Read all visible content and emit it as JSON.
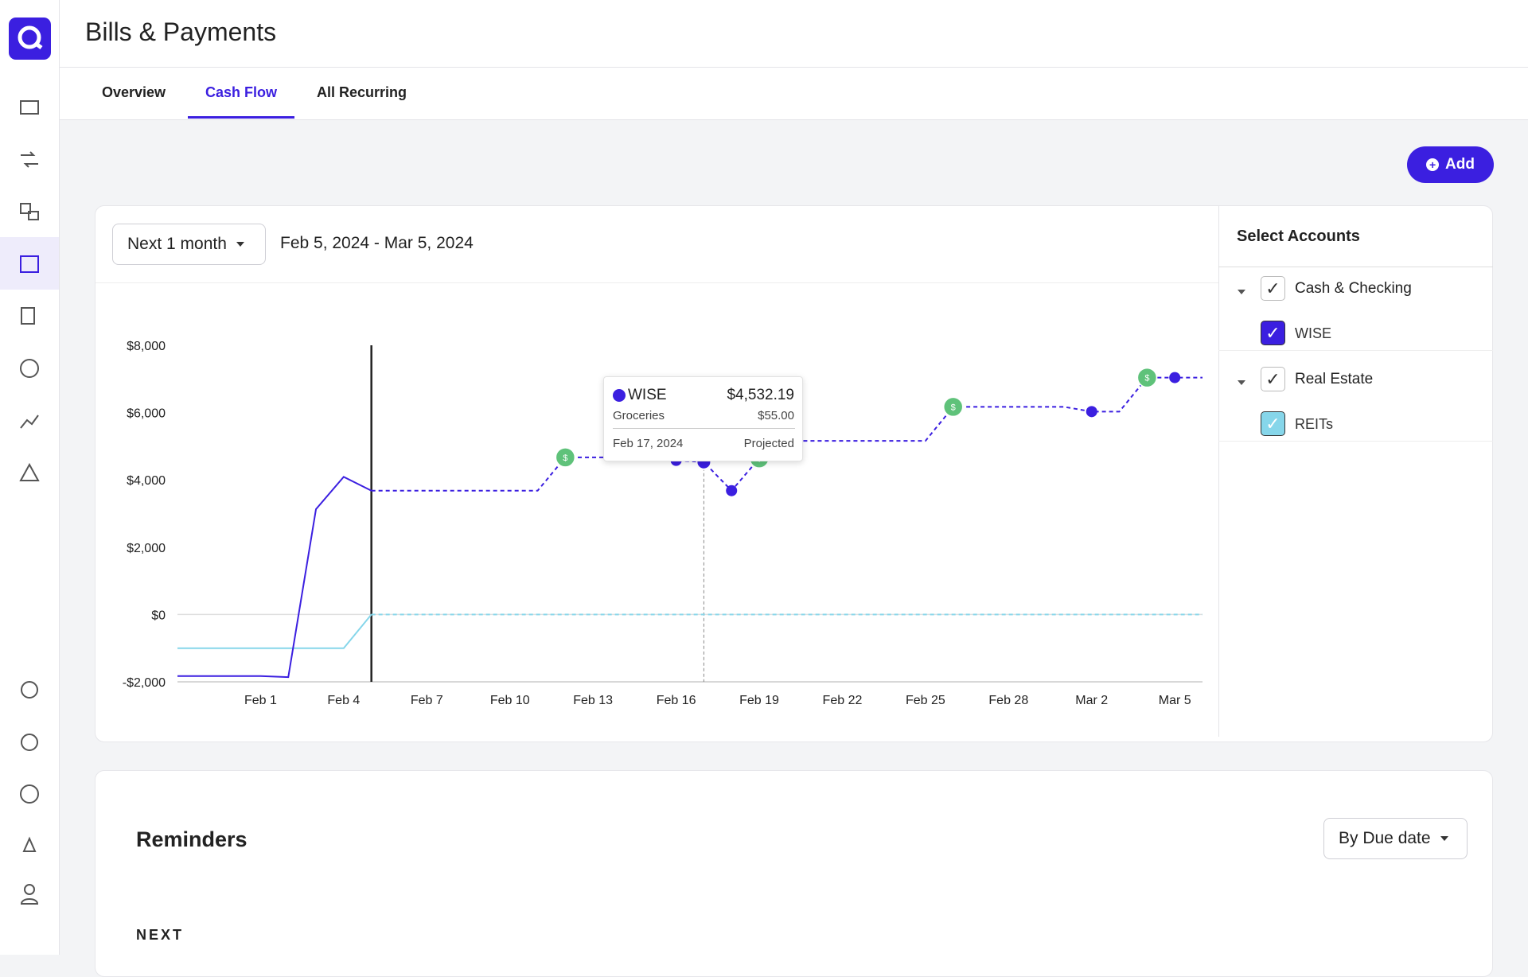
{
  "header": {
    "title": "Bills & Payments"
  },
  "tabs": [
    "Overview",
    "Cash Flow",
    "All Recurring"
  ],
  "active_tab": 1,
  "add_button": "Add",
  "range_select": "Next 1 month",
  "date_range": "Feb 5, 2024 - Mar 5, 2024",
  "accounts_panel": {
    "title": "Select Accounts",
    "groups": [
      {
        "name": "Cash & Checking",
        "accounts": [
          "WISE"
        ]
      },
      {
        "name": "Real Estate",
        "accounts": [
          "REITs"
        ]
      }
    ]
  },
  "tooltip": {
    "account": "WISE",
    "amount": "$4,532.19",
    "category": "Groceries",
    "category_amount": "$55.00",
    "date": "Feb 17, 2024",
    "status": "Projected",
    "hover_index": 19
  },
  "chart_data": {
    "type": "line",
    "categories": [
      null,
      null,
      null,
      "Feb 1",
      null,
      null,
      "Feb 4",
      null,
      null,
      "Feb 7",
      null,
      null,
      "Feb 10",
      null,
      null,
      "Feb 13",
      null,
      null,
      "Feb 16",
      null,
      null,
      "Feb 19",
      null,
      null,
      "Feb 22",
      null,
      null,
      "Feb 25",
      null,
      null,
      "Feb 28",
      null,
      null,
      "Mar 2",
      null,
      null,
      "Mar 5",
      null
    ],
    "series": [
      {
        "name": "WISE",
        "color": "#3b1fe0",
        "values": [
          -1830,
          -1830,
          -1830,
          -1830,
          -1860,
          3130,
          4090,
          3680,
          3680,
          3680,
          3680,
          3680,
          3680,
          3680,
          4670,
          4670,
          4670,
          4670,
          4580,
          4532.19,
          3680,
          4640,
          5160,
          5160,
          5160,
          5160,
          5160,
          5160,
          6170,
          6170,
          6170,
          6170,
          6170,
          6030,
          6030,
          7040,
          7040,
          7040
        ],
        "markers": [
          null,
          null,
          null,
          null,
          null,
          null,
          null,
          null,
          null,
          null,
          null,
          null,
          null,
          null,
          "bill",
          null,
          null,
          null,
          "dot",
          "dot",
          "dot",
          "bill",
          null,
          null,
          null,
          null,
          null,
          null,
          "bill",
          null,
          null,
          null,
          null,
          "dot",
          null,
          "bill",
          "dot",
          null
        ]
      },
      {
        "name": "REITs",
        "color": "#86d6ea",
        "values": [
          -1000,
          -1000,
          -1000,
          -1000,
          -1000,
          -1000,
          -1000,
          0,
          0,
          0,
          0,
          0,
          0,
          0,
          0,
          0,
          0,
          0,
          0,
          0,
          0,
          0,
          0,
          0,
          0,
          0,
          0,
          0,
          0,
          0,
          0,
          0,
          0,
          0,
          0,
          0,
          0,
          0
        ]
      }
    ],
    "bill_color": "#5fc27a",
    "bill_marker_label": "$",
    "today_index": 7,
    "ylim": [
      -2000,
      8000
    ],
    "yticks": [
      {
        "value": -2000,
        "label": "-$2,000"
      },
      {
        "value": 0,
        "label": "$0"
      },
      {
        "value": 2000,
        "label": "$2,000"
      },
      {
        "value": 4000,
        "label": "$4,000"
      },
      {
        "value": 6000,
        "label": "$6,000"
      },
      {
        "value": 8000,
        "label": "$8,000"
      }
    ],
    "grid": false,
    "zero_line": true
  },
  "reminders": {
    "title": "Reminders",
    "sort": "By Due date",
    "section": "NEXT"
  }
}
